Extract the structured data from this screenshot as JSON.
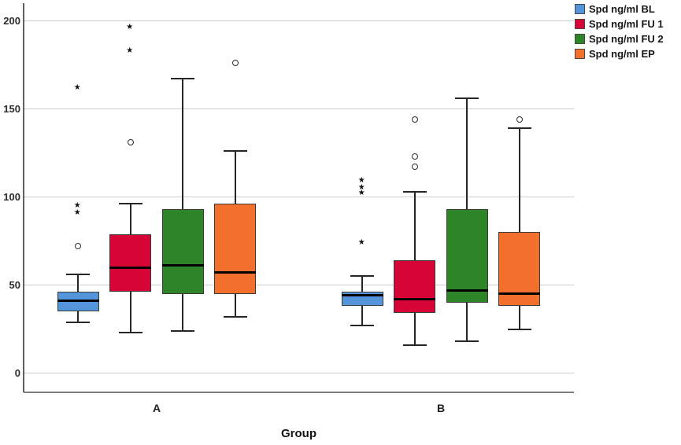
{
  "chart_data": {
    "type": "boxplot",
    "title": "",
    "xlabel": "Group",
    "ylabel": "",
    "categories": [
      "A",
      "B"
    ],
    "yticks": [
      "0",
      "50",
      "100",
      "150",
      "200"
    ],
    "ylim": [
      -11,
      211
    ],
    "grid": "horizontal-gridlines",
    "legend_position": "top-right",
    "outlier_glyphs": {
      "mild": "circle",
      "extreme": "star"
    },
    "series": [
      {
        "name": "Spd ng/ml BL",
        "color": "#5394DB",
        "boxes": [
          {
            "category": "A",
            "whisker_low": 29,
            "q1": 35,
            "median": 41,
            "q3": 46,
            "whisker_high": 56,
            "outliers_mild": [
              72
            ],
            "outliers_extreme": [
              91,
              95,
              162
            ]
          },
          {
            "category": "B",
            "whisker_low": 27,
            "q1": 38,
            "median": 44,
            "q3": 46,
            "whisker_high": 55,
            "outliers_mild": [],
            "outliers_extreme": [
              74,
              102,
              105,
              109
            ]
          }
        ]
      },
      {
        "name": "Spd ng/ml FU 1",
        "color": "#D60535",
        "boxes": [
          {
            "category": "A",
            "whisker_low": 23,
            "q1": 46,
            "median": 60,
            "q3": 79,
            "whisker_high": 96,
            "outliers_mild": [
              131
            ],
            "outliers_extreme": [
              183,
              196
            ]
          },
          {
            "category": "B",
            "whisker_low": 16,
            "q1": 34,
            "median": 42,
            "q3": 64,
            "whisker_high": 103,
            "outliers_mild": [
              117,
              123,
              144
            ],
            "outliers_extreme": []
          }
        ]
      },
      {
        "name": "Spd ng/ml FU 2",
        "color": "#2E8528",
        "boxes": [
          {
            "category": "A",
            "whisker_low": 24,
            "q1": 45,
            "median": 61,
            "q3": 93,
            "whisker_high": 167,
            "outliers_mild": [],
            "outliers_extreme": []
          },
          {
            "category": "B",
            "whisker_low": 18,
            "q1": 40,
            "median": 47,
            "q3": 93,
            "whisker_high": 156,
            "outliers_mild": [],
            "outliers_extreme": []
          }
        ]
      },
      {
        "name": "Spd ng/ml EP",
        "color": "#F2702C",
        "boxes": [
          {
            "category": "A",
            "whisker_low": 32,
            "q1": 45,
            "median": 57,
            "q3": 96,
            "whisker_high": 126,
            "outliers_mild": [
              176
            ],
            "outliers_extreme": []
          },
          {
            "category": "B",
            "whisker_low": 25,
            "q1": 38,
            "median": 45,
            "q3": 80,
            "whisker_high": 139,
            "outliers_mild": [
              144
            ],
            "outliers_extreme": []
          }
        ]
      }
    ]
  }
}
